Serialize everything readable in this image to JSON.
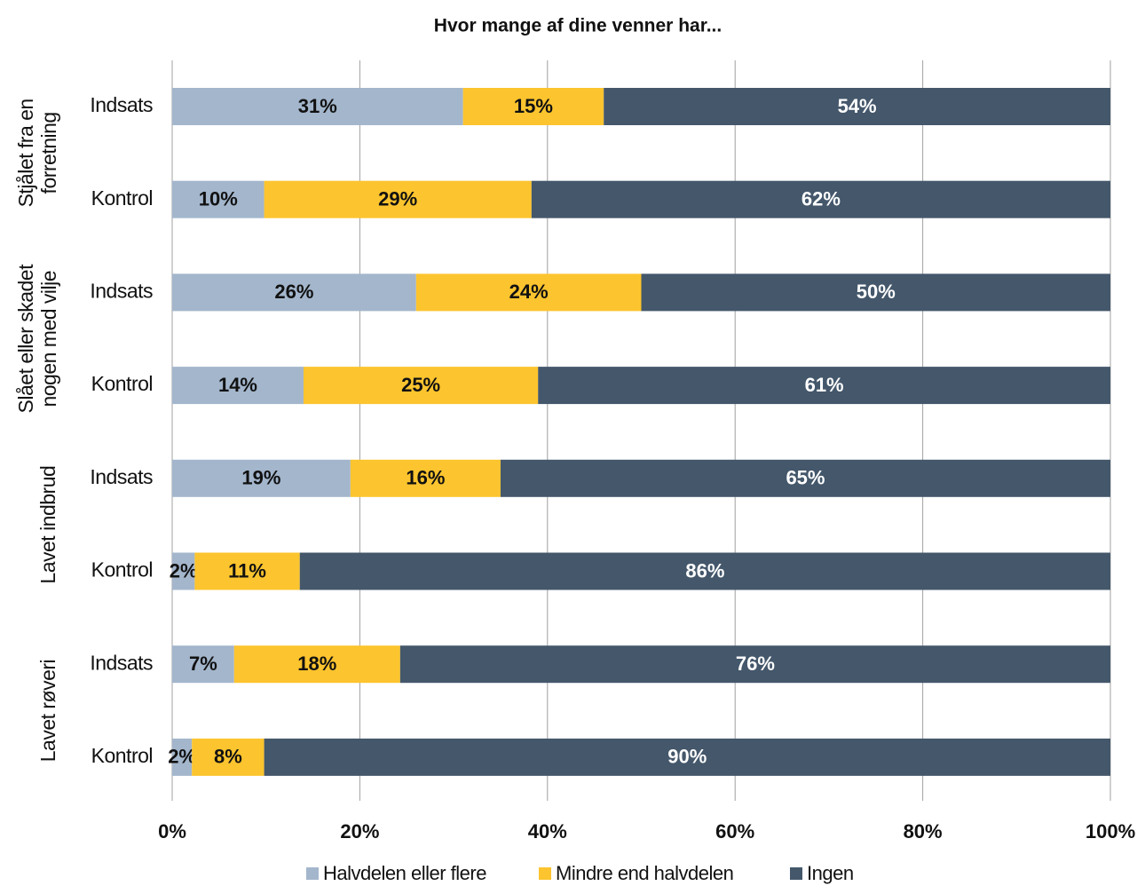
{
  "chart_data": {
    "type": "stacked_barh",
    "title": "Hvor mange af dine venner har...",
    "groups": [
      {
        "label": [
          "Stjålet fra en",
          "forretning"
        ]
      },
      {
        "label": [
          "Slået eller skadet",
          "nogen med vilje"
        ]
      },
      {
        "label": [
          "Lavet indbrud"
        ]
      },
      {
        "label": [
          "Lavet røveri"
        ]
      }
    ],
    "categories": [
      "Indsats",
      "Kontrol",
      "Indsats",
      "Kontrol",
      "Indsats",
      "Kontrol",
      "Indsats",
      "Kontrol"
    ],
    "series": [
      {
        "name": "Halvdelen eller flere",
        "color": "#a3b6cc",
        "values": [
          31,
          9.8,
          26,
          14,
          19,
          2.4,
          6.6,
          2.1
        ],
        "value_labels": [
          "31%",
          "10%",
          "26%",
          "14%",
          "19%",
          "2%",
          "7%",
          "2%"
        ]
      },
      {
        "name": "Mindre end halvdelen",
        "color": "#fcc42e",
        "values": [
          15,
          28.5,
          24,
          25,
          16,
          11.2,
          17.7,
          7.7
        ],
        "value_labels": [
          "15%",
          "29%",
          "24%",
          "25%",
          "16%",
          "11%",
          "18%",
          "8%"
        ]
      },
      {
        "name": "Ingen",
        "color": "#44576b",
        "values": [
          54,
          61.7,
          50,
          61,
          65,
          86.4,
          75.7,
          90.2
        ],
        "value_labels": [
          "54%",
          "62%",
          "50%",
          "61%",
          "65%",
          "86%",
          "76%",
          "90%"
        ]
      }
    ],
    "xlim": [
      0,
      100
    ],
    "xticks": [
      {
        "value": 0,
        "label": "0%"
      },
      {
        "value": 20,
        "label": "20%"
      },
      {
        "value": 40,
        "label": "40%"
      },
      {
        "value": 60,
        "label": "60%"
      },
      {
        "value": 80,
        "label": "80%"
      },
      {
        "value": 100,
        "label": "100%"
      }
    ],
    "grid": true,
    "legend": "bottom"
  }
}
